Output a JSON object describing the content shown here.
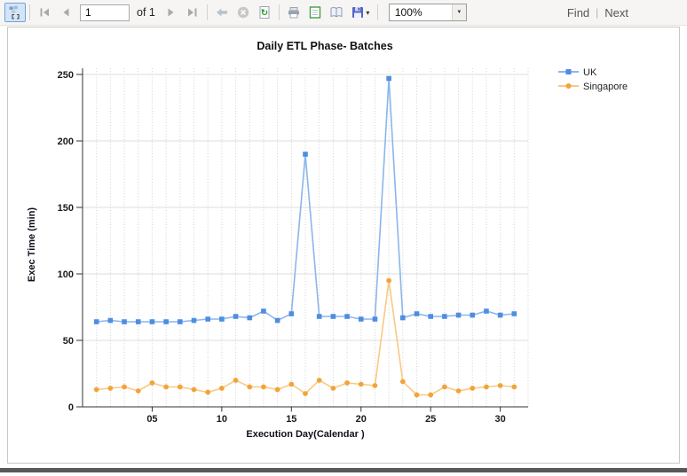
{
  "toolbar": {
    "page_current": "1",
    "page_of_label": "of 1",
    "zoom_value": "100%",
    "find_label": "Find",
    "find_separator": "|",
    "next_label": "Next",
    "icons": {
      "save_caret": "▾",
      "combo_caret": "▼",
      "refresh_glyph": "↻"
    }
  },
  "chart_data": {
    "type": "line",
    "title": "Daily ETL Phase- Batches",
    "xlabel": "Execution Day(Calendar )",
    "ylabel": "Exec Time (min)",
    "x": [
      1,
      2,
      3,
      4,
      5,
      6,
      7,
      8,
      9,
      10,
      11,
      12,
      13,
      14,
      15,
      16,
      17,
      18,
      19,
      20,
      21,
      22,
      23,
      24,
      25,
      26,
      27,
      28,
      29,
      30,
      31
    ],
    "x_tick_positions": [
      5,
      10,
      15,
      20,
      25,
      30
    ],
    "x_tick_labels": [
      "05",
      "10",
      "15",
      "20",
      "25",
      "30"
    ],
    "ylim": [
      0,
      250
    ],
    "y_ticks": [
      0,
      50,
      100,
      150,
      200,
      250
    ],
    "grid": true,
    "legend_position": "top-right",
    "series": [
      {
        "name": "UK",
        "marker": "square",
        "line_color": "#8ab6ec",
        "marker_color": "#4e8de2",
        "values": [
          64,
          65,
          64,
          64,
          64,
          64,
          64,
          65,
          66,
          66,
          68,
          67,
          72,
          65,
          70,
          190,
          68,
          68,
          68,
          66,
          66,
          247,
          67,
          70,
          68,
          68,
          69,
          69,
          72,
          69,
          70
        ]
      },
      {
        "name": "Singapore",
        "marker": "circle",
        "line_color": "#f9c982",
        "marker_color": "#f2a438",
        "values": [
          13,
          14,
          15,
          12,
          18,
          15,
          15,
          13,
          11,
          14,
          20,
          15,
          15,
          13,
          17,
          10,
          20,
          14,
          18,
          17,
          16,
          95,
          19,
          9,
          9,
          15,
          12,
          14,
          15,
          16,
          15
        ]
      }
    ]
  }
}
